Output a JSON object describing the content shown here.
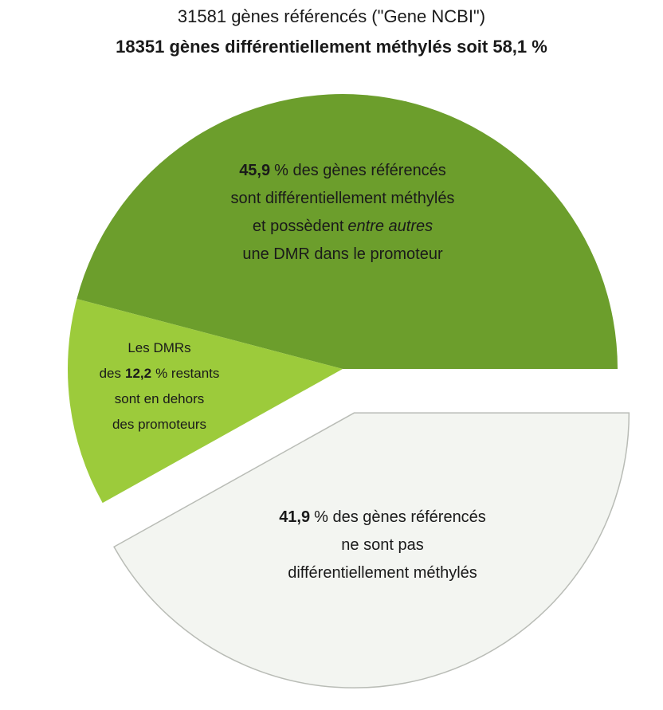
{
  "chart_data": {
    "type": "pie",
    "title": "31581 gènes référencés (\"Gene NCBI\")",
    "subtitle": "18351 gènes différentiellement méthylés soit 58,1 %",
    "values": [
      45.9,
      12.2,
      41.9
    ],
    "value_labels": [
      "45,9",
      "12,2",
      "41,9"
    ],
    "colors": [
      "#6c9e2c",
      "#9ccb3b",
      "#f3f5f1"
    ],
    "exploded": [
      false,
      false,
      true
    ],
    "slice_text": [
      [
        {
          "after": "% des gènes référencés"
        },
        {
          "text": "sont différentiellement méthylés"
        },
        {
          "text": "et possèdent",
          "italic": "entre autres"
        },
        {
          "text": "une DMR dans le promoteur"
        }
      ],
      [
        {
          "text": "Les DMRs"
        },
        {
          "before": "des",
          "after": "% restants"
        },
        {
          "text": "sont en dehors"
        },
        {
          "text": "des promoteurs"
        }
      ],
      [
        {
          "after": "% des gènes référencés"
        },
        {
          "text": "ne sont pas"
        },
        {
          "text": "différentiellement méthylés"
        }
      ]
    ]
  }
}
